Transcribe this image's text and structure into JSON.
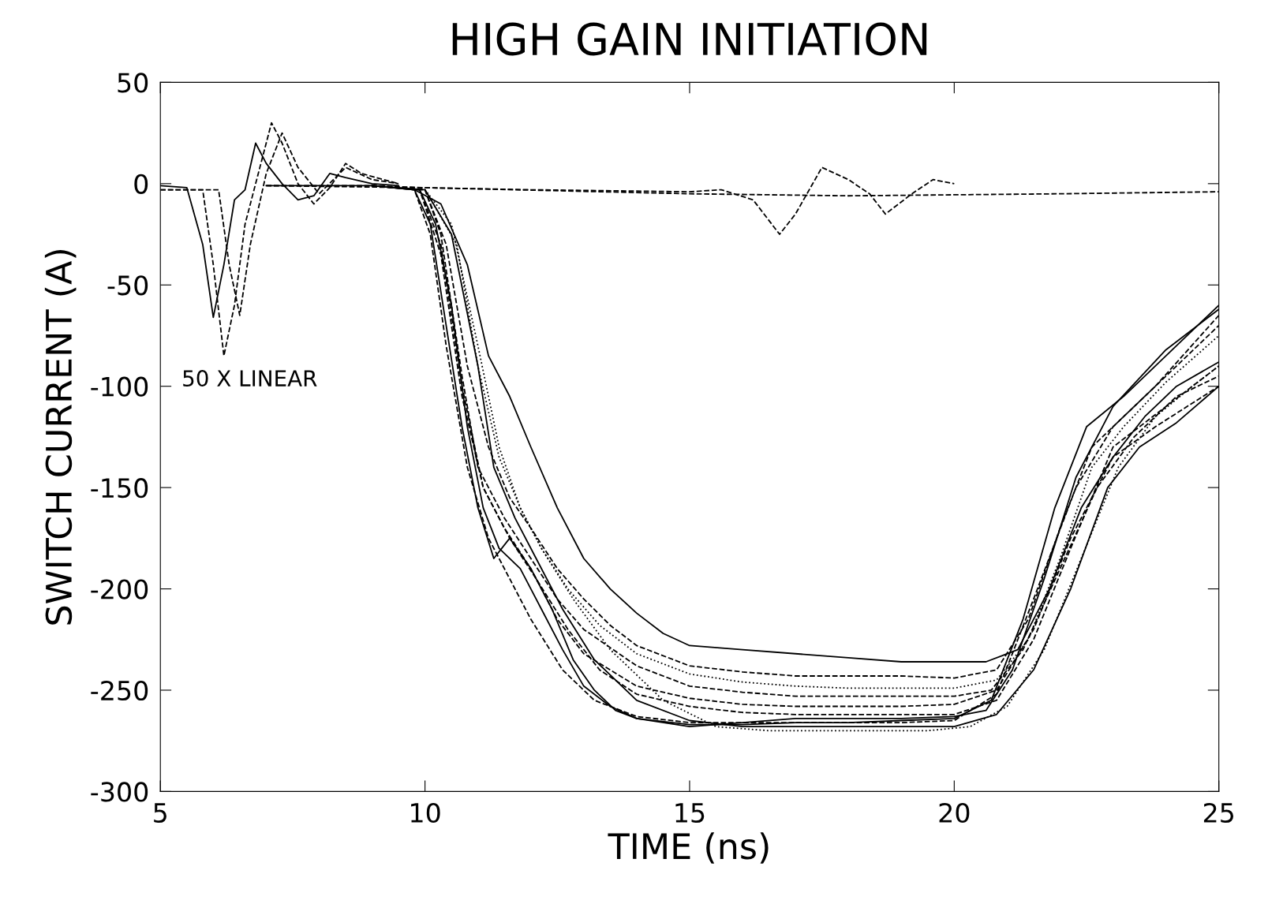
{
  "chart_data": {
    "type": "line",
    "title": "HIGH GAIN INITIATION",
    "xlabel": "TIME (ns)",
    "ylabel": "SWITCH CURRENT (A)",
    "annotations": [
      "50 X LINEAR"
    ],
    "xlim": [
      5,
      25
    ],
    "xticks": [
      5,
      10,
      15,
      20,
      25
    ],
    "ylim": [
      -300,
      50
    ],
    "yticks": [
      -300,
      -250,
      -200,
      -150,
      -100,
      -50,
      0,
      50
    ],
    "grid": false,
    "marker": "none",
    "series": [
      {
        "color": "#000000",
        "line_style": "solid",
        "x": [
          5,
          5.5,
          5.8,
          6.0,
          6.2,
          6.4,
          6.6,
          6.8,
          7.0,
          7.3,
          7.6,
          7.9,
          8.2,
          8.5,
          9.0,
          9.5
        ],
        "values": [
          -1,
          -2,
          -30,
          -66,
          -40,
          -8,
          -3,
          20,
          10,
          0,
          -8,
          -6,
          5,
          3,
          0,
          -1
        ]
      },
      {
        "color": "#000000",
        "line_style": "dashed",
        "x": [
          5,
          5.8,
          6.0,
          6.2,
          6.4,
          6.6,
          6.9,
          7.1,
          7.3,
          7.6,
          7.9,
          8.2,
          8.5,
          8.8,
          9.5
        ],
        "values": [
          -3,
          -3,
          -40,
          -85,
          -60,
          -20,
          10,
          30,
          20,
          0,
          -10,
          -2,
          10,
          5,
          0
        ]
      },
      {
        "color": "#000000",
        "line_style": "dashed",
        "x": [
          5,
          6.1,
          6.3,
          6.5,
          6.7,
          7.0,
          7.3,
          7.6,
          8.0,
          8.5,
          9.0,
          9.5
        ],
        "values": [
          -3,
          -3,
          -40,
          -65,
          -30,
          5,
          25,
          8,
          -5,
          8,
          2,
          0
        ]
      },
      {
        "color": "#000000",
        "line_style": "dashed",
        "x": [
          7,
          9,
          10,
          12,
          15,
          15.6,
          16.2,
          16.7,
          17.0,
          17.5,
          18.0,
          18.4,
          18.7,
          19.2,
          19.6,
          20
        ],
        "values": [
          -1,
          -1,
          -2,
          -3,
          -4,
          -3,
          -8,
          -25,
          -15,
          8,
          2,
          -5,
          -15,
          -5,
          2,
          0
        ]
      },
      {
        "color": "#000000",
        "line_style": "dashed",
        "x": [
          7,
          10,
          15,
          18,
          22,
          25
        ],
        "values": [
          -1,
          -2,
          -5,
          -6,
          -5,
          -4
        ]
      },
      {
        "color": "#000000",
        "line_style": "solid",
        "x": [
          7,
          9,
          9.8,
          10.3,
          10.8,
          11.2,
          11.6,
          12,
          12.5,
          13,
          13.5,
          14,
          14.5,
          15,
          16,
          17,
          18,
          19,
          20,
          20.6,
          21.2,
          21.8,
          22.4,
          23,
          23.6,
          24.2,
          25
        ],
        "values": [
          -1,
          -1,
          -3,
          -10,
          -40,
          -85,
          -105,
          -130,
          -160,
          -185,
          -200,
          -212,
          -222,
          -228,
          -230,
          -232,
          -234,
          -236,
          -236,
          -236,
          -230,
          -200,
          -160,
          -135,
          -115,
          -100,
          -88
        ]
      },
      {
        "color": "#000000",
        "line_style": "dashed",
        "x": [
          9,
          10,
          10.4,
          10.8,
          11.2,
          11.6,
          12,
          12.5,
          13,
          13.5,
          14,
          15,
          16,
          17,
          18,
          19,
          20,
          20.8,
          21.4,
          22,
          22.6,
          23.2,
          24,
          25
        ],
        "values": [
          -1,
          -3,
          -30,
          -90,
          -130,
          -155,
          -170,
          -190,
          -205,
          -218,
          -228,
          -238,
          -241,
          -243,
          -243,
          -243,
          -244,
          -240,
          -215,
          -170,
          -130,
          -115,
          -95,
          -70
        ]
      },
      {
        "color": "#000000",
        "line_style": "dotted",
        "x": [
          9,
          10,
          10.5,
          11,
          11.4,
          11.8,
          12.2,
          12.7,
          13.3,
          14,
          15,
          16,
          17,
          18,
          19,
          20,
          20.8,
          21.4,
          22,
          22.6,
          23.2,
          24,
          25
        ],
        "values": [
          -1,
          -3,
          -20,
          -80,
          -130,
          -160,
          -180,
          -200,
          -218,
          -232,
          -242,
          -246,
          -248,
          -249,
          -249,
          -249,
          -245,
          -225,
          -185,
          -140,
          -120,
          -98,
          -75
        ]
      },
      {
        "color": "#000000",
        "line_style": "dashed",
        "x": [
          9,
          10,
          10.3,
          10.7,
          11,
          11.5,
          12,
          12.5,
          13,
          14,
          15,
          16,
          17,
          18,
          19,
          20,
          20.7,
          21.3,
          22,
          22.7,
          23.4,
          24.2,
          25
        ],
        "values": [
          -1,
          -3,
          -25,
          -95,
          -140,
          -165,
          -185,
          -205,
          -220,
          -238,
          -248,
          -251,
          -253,
          -253,
          -253,
          -253,
          -250,
          -230,
          -190,
          -150,
          -125,
          -105,
          -95
        ]
      },
      {
        "color": "#000000",
        "line_style": "dashed",
        "x": [
          9,
          9.9,
          10.3,
          10.7,
          11.1,
          11.5,
          12,
          12.5,
          13,
          14,
          15,
          16,
          17,
          18,
          19,
          20,
          20.8,
          21.5,
          22.2,
          23,
          23.8,
          25
        ],
        "values": [
          -1,
          -3,
          -30,
          -100,
          -150,
          -170,
          -190,
          -215,
          -232,
          -248,
          -254,
          -257,
          -258,
          -258,
          -258,
          -257,
          -250,
          -220,
          -175,
          -135,
          -120,
          -100
        ]
      },
      {
        "color": "#000000",
        "line_style": "solid",
        "x": [
          9,
          9.9,
          10.2,
          10.5,
          10.8,
          11.1,
          11.4,
          11.8,
          12.2,
          12.6,
          13,
          13.5,
          14,
          15,
          16,
          17,
          18,
          19,
          20,
          20.7,
          21.3,
          21.9,
          22.5,
          23.2,
          24,
          25
        ],
        "values": [
          -1,
          -3,
          -20,
          -60,
          -120,
          -160,
          -180,
          -190,
          -210,
          -230,
          -248,
          -258,
          -264,
          -267,
          -267,
          -266,
          -266,
          -265,
          -264,
          -255,
          -215,
          -160,
          -120,
          -105,
          -85,
          -60
        ]
      },
      {
        "color": "#000000",
        "line_style": "dashed",
        "x": [
          9,
          9.8,
          10.1,
          10.4,
          10.8,
          11.2,
          11.6,
          12,
          12.6,
          13.2,
          14,
          15,
          16,
          17,
          18,
          19,
          20,
          20.8,
          21.5,
          22.3,
          23,
          23.8,
          25
        ],
        "values": [
          -1,
          -3,
          -25,
          -80,
          -140,
          -175,
          -195,
          -215,
          -240,
          -255,
          -263,
          -266,
          -266,
          -266,
          -266,
          -266,
          -265,
          -252,
          -205,
          -150,
          -120,
          -100,
          -65
        ]
      },
      {
        "color": "#000000",
        "line_style": "solid",
        "x": [
          9,
          10,
          10.5,
          11,
          11.3,
          11.7,
          12.1,
          12.6,
          13.2,
          14,
          15,
          16,
          17,
          18,
          19,
          20,
          20.8,
          21.5,
          22.2,
          22.9,
          23.5,
          24.2,
          25
        ],
        "values": [
          -1,
          -3,
          -25,
          -90,
          -140,
          -165,
          -185,
          -210,
          -235,
          -255,
          -265,
          -268,
          -268,
          -268,
          -268,
          -268,
          -262,
          -240,
          -200,
          -150,
          -130,
          -118,
          -100
        ]
      },
      {
        "color": "#000000",
        "line_style": "dotted",
        "x": [
          9,
          10,
          10.6,
          11,
          11.4,
          11.8,
          12.2,
          12.8,
          13.5,
          14.5,
          15.5,
          16.5,
          17.5,
          18.5,
          19.5,
          20.3,
          21,
          21.7,
          22.4,
          23.1,
          23.8,
          24.5,
          25
        ],
        "values": [
          -1,
          -3,
          -30,
          -90,
          -135,
          -160,
          -180,
          -205,
          -230,
          -255,
          -268,
          -270,
          -270,
          -270,
          -270,
          -268,
          -258,
          -230,
          -185,
          -140,
          -115,
          -100,
          -90
        ]
      },
      {
        "color": "#000000",
        "line_style": "solid",
        "x": [
          9,
          9.8,
          10.1,
          10.4,
          10.7,
          11,
          11.3,
          11.6,
          12,
          12.4,
          12.8,
          13.2,
          13.6,
          14,
          15,
          16,
          17,
          18,
          19,
          20,
          20.6,
          21.1,
          21.7,
          22.3,
          23,
          24,
          25
        ],
        "values": [
          -1,
          -3,
          -20,
          -70,
          -120,
          -160,
          -185,
          -175,
          -190,
          -210,
          -235,
          -250,
          -260,
          -264,
          -268,
          -266,
          -264,
          -264,
          -264,
          -263,
          -260,
          -240,
          -195,
          -145,
          -110,
          -82,
          -62
        ]
      },
      {
        "color": "#000000",
        "line_style": "dashed",
        "x": [
          9,
          9.9,
          10.3,
          10.7,
          11.1,
          11.6,
          12.1,
          12.7,
          13.3,
          14,
          15,
          16,
          17,
          18,
          19,
          20,
          20.8,
          21.5,
          22.2,
          23,
          24,
          25
        ],
        "values": [
          -1,
          -3,
          -35,
          -105,
          -150,
          -175,
          -195,
          -220,
          -240,
          -252,
          -258,
          -261,
          -262,
          -262,
          -262,
          -262,
          -255,
          -225,
          -180,
          -130,
          -110,
          -90
        ]
      }
    ]
  }
}
